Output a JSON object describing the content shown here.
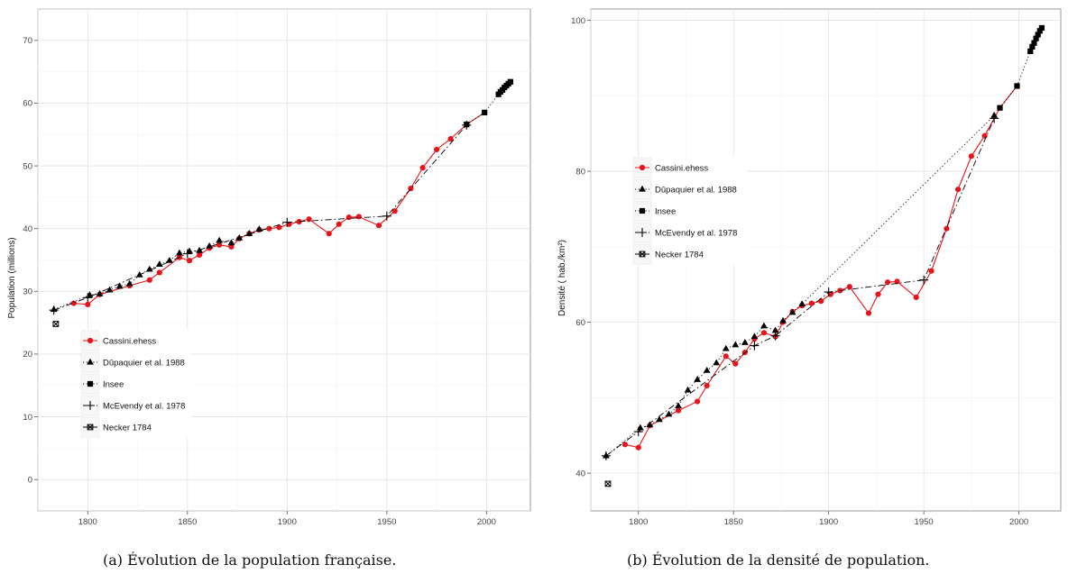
{
  "chart_data": [
    {
      "type": "line",
      "caption": "(a) Évolution de la population française.",
      "xlabel": "",
      "ylabel": "Population (millions)",
      "xlim": [
        1775,
        2022
      ],
      "ylim": [
        -5,
        75
      ],
      "xticks": [
        1800,
        1850,
        1900,
        1950,
        2000
      ],
      "yticks": [
        0,
        10,
        20,
        30,
        40,
        50,
        60,
        70
      ],
      "grid": true,
      "legend_position": "bottom-left",
      "series": [
        {
          "name": "Cassini.ehess",
          "color": "#e8141b",
          "line": "solid",
          "marker": "circle",
          "x": [
            1793,
            1800,
            1806,
            1821,
            1831,
            1836,
            1846,
            1851,
            1856,
            1861,
            1866,
            1872,
            1876,
            1881,
            1886,
            1891,
            1896,
            1901,
            1906,
            1911,
            1921,
            1926,
            1931,
            1936,
            1946,
            1954,
            1962,
            1968,
            1975,
            1982,
            1990,
            1999
          ],
          "y": [
            28.1,
            27.9,
            29.5,
            30.9,
            31.8,
            33.0,
            35.4,
            34.9,
            35.8,
            36.9,
            37.4,
            37.1,
            38.4,
            39.2,
            39.8,
            40.0,
            40.2,
            40.7,
            41.1,
            41.5,
            39.2,
            40.7,
            41.8,
            41.9,
            40.5,
            42.8,
            46.4,
            49.7,
            52.6,
            54.3,
            56.6,
            58.5
          ]
        },
        {
          "name": "Dûpaquier et al. 1988",
          "color": "#000000",
          "line": "dotted",
          "marker": "triangle",
          "x": [
            1783,
            1801,
            1806,
            1811,
            1816,
            1821,
            1826,
            1831,
            1836,
            1841,
            1846,
            1851,
            1856,
            1861,
            1866,
            1872,
            1876,
            1881,
            1886
          ],
          "y": [
            27.1,
            29.4,
            29.6,
            30.2,
            30.8,
            31.2,
            32.6,
            33.5,
            34.3,
            34.9,
            36.1,
            36.4,
            36.5,
            37.2,
            38.1,
            37.7,
            38.5,
            39.2,
            39.9
          ]
        },
        {
          "name": "Insee",
          "color": "#000000",
          "line": "dotted",
          "marker": "square",
          "x": [
            1990,
            1999,
            2006,
            2007,
            2008,
            2009,
            2010,
            2011,
            2012
          ],
          "y": [
            56.6,
            58.5,
            61.4,
            61.8,
            62.1,
            62.5,
            62.8,
            63.1,
            63.4
          ]
        },
        {
          "name": "McEvendy et al. 1978",
          "color": "#000000",
          "line": "dashdot",
          "marker": "plus",
          "x": [
            1783,
            1800,
            1850,
            1900,
            1950,
            1990
          ],
          "y": [
            27.0,
            29.0,
            36.0,
            41.0,
            42.0,
            56.5
          ]
        },
        {
          "name": "Necker 1784",
          "color": "#000000",
          "line": "solid",
          "marker": "boxx",
          "x": [
            1784
          ],
          "y": [
            24.8
          ]
        }
      ]
    },
    {
      "type": "line",
      "caption": "(b) Évolution de la densité de population.",
      "xlabel": "",
      "ylabel": "Densité ( hab./km²)",
      "xlim": [
        1775,
        2022
      ],
      "ylim": [
        35,
        101.5
      ],
      "xticks": [
        1800,
        1850,
        1900,
        1950,
        2000
      ],
      "yticks": [
        40,
        60,
        80,
        100
      ],
      "grid": true,
      "legend_position": "top-left",
      "series": [
        {
          "name": "Cassini.ehess",
          "color": "#e8141b",
          "line": "solid",
          "marker": "circle",
          "x": [
            1793,
            1800,
            1806,
            1821,
            1831,
            1836,
            1846,
            1851,
            1856,
            1861,
            1866,
            1872,
            1876,
            1881,
            1886,
            1891,
            1896,
            1901,
            1906,
            1911,
            1921,
            1926,
            1931,
            1936,
            1946,
            1954,
            1962,
            1968,
            1975,
            1982,
            1990,
            1999
          ],
          "y": [
            43.8,
            43.4,
            46.3,
            48.3,
            49.5,
            51.6,
            55.5,
            54.5,
            56.0,
            57.8,
            58.6,
            58.1,
            60.0,
            61.4,
            62.2,
            62.5,
            62.8,
            63.7,
            64.2,
            64.7,
            61.2,
            63.7,
            65.3,
            65.4,
            63.3,
            66.8,
            72.4,
            77.6,
            82.0,
            84.7,
            88.4,
            91.3
          ]
        },
        {
          "name": "Dûpaquier et al. 1988",
          "color": "#000000",
          "line": "dotted",
          "marker": "triangle",
          "x": [
            1783,
            1801,
            1806,
            1811,
            1816,
            1821,
            1826,
            1831,
            1836,
            1841,
            1846,
            1851,
            1856,
            1861,
            1866,
            1872,
            1876,
            1881,
            1886,
            1987
          ],
          "y": [
            42.3,
            46.0,
            46.4,
            47.1,
            47.8,
            48.9,
            51.0,
            52.4,
            53.6,
            54.6,
            56.5,
            57.0,
            57.3,
            58.1,
            59.5,
            58.9,
            60.2,
            61.3,
            62.4,
            87.4
          ]
        },
        {
          "name": "Insee",
          "color": "#000000",
          "line": "dotted",
          "marker": "square",
          "x": [
            1990,
            1999,
            2006,
            2007,
            2008,
            2009,
            2010,
            2011,
            2012
          ],
          "y": [
            88.4,
            91.3,
            95.9,
            96.5,
            97.0,
            97.6,
            98.1,
            98.6,
            99.0
          ]
        },
        {
          "name": "McEvendy et al. 1978",
          "color": "#000000",
          "line": "dashdot",
          "marker": "plus",
          "x": [
            1783,
            1800,
            1861,
            1872,
            1900,
            1950,
            1987
          ],
          "y": [
            42.3,
            45.5,
            56.9,
            58.2,
            64.0,
            65.6,
            87.0
          ]
        },
        {
          "name": "Necker 1784",
          "color": "#000000",
          "line": "solid",
          "marker": "boxx",
          "x": [
            1784
          ],
          "y": [
            38.6
          ]
        }
      ]
    }
  ]
}
